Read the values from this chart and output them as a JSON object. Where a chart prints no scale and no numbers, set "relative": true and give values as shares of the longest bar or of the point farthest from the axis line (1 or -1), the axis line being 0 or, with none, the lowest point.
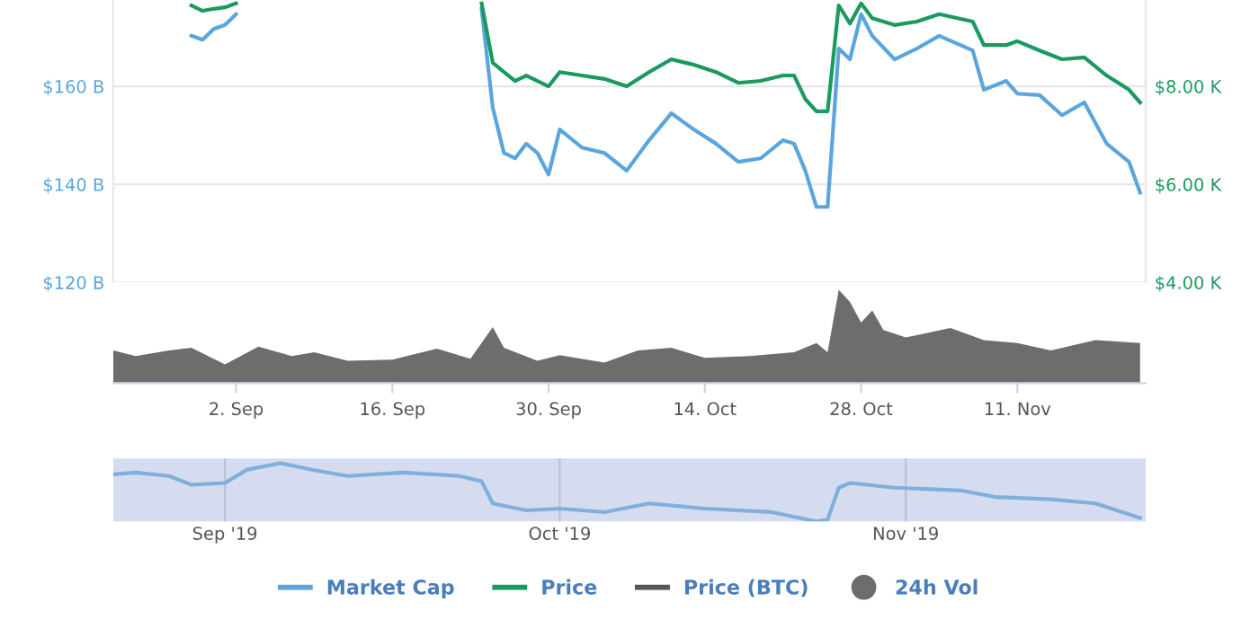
{
  "chart_data": [
    {
      "type": "line",
      "x": [
        "2019-08-29",
        "2019-08-30",
        "2019-08-31",
        "2019-09-01",
        "2019-09-02",
        "2019-09-03",
        "2019-09-24",
        "2019-09-25",
        "2019-09-26",
        "2019-09-27",
        "2019-09-28",
        "2019-09-29",
        "2019-09-30",
        "2019-10-01",
        "2019-10-03",
        "2019-10-05",
        "2019-10-07",
        "2019-10-09",
        "2019-10-11",
        "2019-10-13",
        "2019-10-15",
        "2019-10-17",
        "2019-10-19",
        "2019-10-21",
        "2019-10-22",
        "2019-10-23",
        "2019-10-24",
        "2019-10-25",
        "2019-10-26",
        "2019-10-27",
        "2019-10-28",
        "2019-10-29",
        "2019-10-31",
        "2019-11-02",
        "2019-11-04",
        "2019-11-07",
        "2019-11-08",
        "2019-11-10",
        "2019-11-11",
        "2019-11-13",
        "2019-11-15",
        "2019-11-17",
        "2019-11-19",
        "2019-11-21",
        "2019-11-22"
      ],
      "series": [
        {
          "name": "Market Cap",
          "color": "#5aa5dc",
          "values": [
            170.3,
            169.5,
            171.7,
            172.5,
            174.7,
            null,
            175.8,
            155.6,
            146.4,
            145.3,
            148.3,
            146.4,
            142.0,
            151.2,
            147.5,
            146.4,
            142.8,
            149.0,
            154.5,
            151.2,
            148.3,
            144.6,
            145.3,
            149.0,
            148.3,
            142.8,
            135.4,
            135.4,
            167.7,
            165.5,
            174.7,
            170.3,
            165.5,
            167.7,
            170.3,
            167.3,
            159.3,
            161.1,
            158.5,
            158.2,
            154.1,
            156.7,
            148.3,
            144.6,
            138.3
          ]
        },
        {
          "name": "Price",
          "color": "#1a9a5e",
          "axis": "y2",
          "values": [
            9.65,
            9.54,
            9.58,
            9.61,
            9.69,
            null,
            9.69,
            8.48,
            8.29,
            8.11,
            8.22,
            8.11,
            8.0,
            8.29,
            8.22,
            8.15,
            8.0,
            8.29,
            8.55,
            8.44,
            8.29,
            8.07,
            8.11,
            8.22,
            8.22,
            7.74,
            7.49,
            7.49,
            9.65,
            9.28,
            9.69,
            9.39,
            9.25,
            9.32,
            9.47,
            9.32,
            8.84,
            8.84,
            8.92,
            8.73,
            8.55,
            8.59,
            8.22,
            7.93,
            7.67
          ]
        },
        {
          "name": "Price (BTC)",
          "color": "#555555",
          "values": [
            null,
            null,
            null,
            null,
            null,
            null,
            null,
            null,
            null,
            null,
            null,
            null,
            null,
            null,
            null,
            null,
            null,
            null,
            null,
            null,
            null,
            null,
            null,
            null,
            null,
            null,
            null,
            null,
            null,
            null,
            null,
            null,
            null,
            null,
            null,
            null,
            null,
            null,
            null,
            null,
            null,
            null,
            null,
            null,
            null
          ]
        }
      ],
      "xlim": [
        "2019-08-22",
        "2019-11-22T12:00"
      ],
      "ylim": [
        120,
        177.6
      ],
      "yticks": [
        {
          "value": 120,
          "label": "$120 B"
        },
        {
          "value": 140,
          "label": "$140 B"
        },
        {
          "value": 160,
          "label": "$160 B"
        }
      ],
      "y2lim": [
        4,
        9.76
      ],
      "y2ticks": [
        {
          "value": 4,
          "label": "$4.00 K"
        },
        {
          "value": 6,
          "label": "$6.00 K"
        },
        {
          "value": 8,
          "label": "$8.00 K"
        }
      ],
      "grid": "y",
      "tick_labels": "y",
      "legend": "bottom"
    },
    {
      "type": "area",
      "relative": true,
      "x": [
        "2019-08-22",
        "2019-08-24",
        "2019-08-27",
        "2019-08-29",
        "2019-09-01",
        "2019-09-04",
        "2019-09-07",
        "2019-09-09",
        "2019-09-12",
        "2019-09-16",
        "2019-09-20",
        "2019-09-23",
        "2019-09-25",
        "2019-09-26",
        "2019-09-29",
        "2019-10-01",
        "2019-10-05",
        "2019-10-08",
        "2019-10-11",
        "2019-10-14",
        "2019-10-18",
        "2019-10-22",
        "2019-10-24",
        "2019-10-25",
        "2019-10-26",
        "2019-10-27",
        "2019-10-28",
        "2019-10-29",
        "2019-10-30",
        "2019-11-01",
        "2019-11-05",
        "2019-11-08",
        "2019-11-11",
        "2019-11-14",
        "2019-11-18",
        "2019-11-22"
      ],
      "series": [
        {
          "name": "24h Vol",
          "color": "#6d6d6d",
          "values": [
            0.35,
            0.29,
            0.35,
            0.38,
            0.2,
            0.39,
            0.29,
            0.33,
            0.24,
            0.25,
            0.37,
            0.26,
            0.6,
            0.38,
            0.24,
            0.3,
            0.22,
            0.35,
            0.38,
            0.27,
            0.29,
            0.33,
            0.43,
            0.33,
            1,
            0.87,
            0.65,
            0.78,
            0.57,
            0.49,
            0.59,
            0.46,
            0.43,
            0.35,
            0.46,
            0.43
          ]
        }
      ],
      "xlim": [
        "2019-08-22",
        "2019-11-22T12:00"
      ],
      "xticks": [
        {
          "value": "2019-09-02",
          "label": "2. Sep"
        },
        {
          "value": "2019-09-16",
          "label": "16. Sep"
        },
        {
          "value": "2019-09-30",
          "label": "30. Sep"
        },
        {
          "value": "2019-10-14",
          "label": "14. Oct"
        },
        {
          "value": "2019-10-28",
          "label": "28. Oct"
        },
        {
          "value": "2019-11-11",
          "label": "11. Nov"
        }
      ],
      "tick_labels": "x"
    },
    {
      "type": "line",
      "relative": true,
      "x": [
        "2019-08-22",
        "2019-08-24",
        "2019-08-27",
        "2019-08-29",
        "2019-09-01",
        "2019-09-03",
        "2019-09-06",
        "2019-09-09",
        "2019-09-12",
        "2019-09-17",
        "2019-09-22",
        "2019-09-24",
        "2019-09-25",
        "2019-09-28",
        "2019-10-01",
        "2019-10-05",
        "2019-10-09",
        "2019-10-14",
        "2019-10-20",
        "2019-10-24",
        "2019-10-25",
        "2019-10-26",
        "2019-10-27",
        "2019-10-31",
        "2019-11-06",
        "2019-11-09",
        "2019-11-14",
        "2019-11-18",
        "2019-11-22"
      ],
      "series": [
        {
          "color": "#7fb0dc",
          "values": [
            0.81,
            0.84,
            0.78,
            0.63,
            0.66,
            0.89,
            1,
            0.88,
            0.78,
            0.84,
            0.78,
            0.69,
            0.31,
            0.19,
            0.22,
            0.16,
            0.31,
            0.22,
            0.16,
            0,
            0.03,
            0.58,
            0.66,
            0.58,
            0.53,
            0.42,
            0.38,
            0.31,
            0.06
          ]
        }
      ],
      "xlim": [
        "2019-08-22",
        "2019-11-22T12:00"
      ],
      "xticks": [
        {
          "value": "2019-09-01",
          "label": "Sep '19"
        },
        {
          "value": "2019-10-01",
          "label": "Oct '19"
        },
        {
          "value": "2019-11-01",
          "label": "Nov '19"
        }
      ],
      "grid": "x",
      "tick_labels": "x"
    }
  ]
}
